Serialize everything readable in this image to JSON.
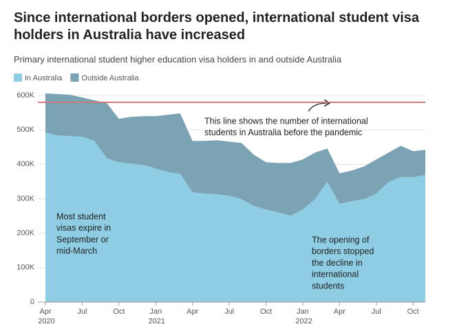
{
  "chart_data": {
    "type": "stacked-area",
    "title": "Since international borders opened, international student visa holders in Australia have increased",
    "subtitle": "Primary international student higher education visa holders in and outside Australia",
    "x": [
      "2020-04",
      "2020-05",
      "2020-06",
      "2020-07",
      "2020-08",
      "2020-09",
      "2020-10",
      "2020-11",
      "2020-12",
      "2021-01",
      "2021-02",
      "2021-03",
      "2021-04",
      "2021-05",
      "2021-06",
      "2021-07",
      "2021-08",
      "2021-09",
      "2021-10",
      "2021-11",
      "2021-12",
      "2022-01",
      "2022-02",
      "2022-03",
      "2022-04",
      "2022-05",
      "2022-06",
      "2022-07",
      "2022-08",
      "2022-09",
      "2022-10",
      "2022-11"
    ],
    "series": [
      {
        "name": "In Australia",
        "color": "#8ecde3",
        "values": [
          492,
          484,
          482,
          480,
          468,
          418,
          406,
          402,
          398,
          388,
          378,
          372,
          319,
          315,
          313,
          309,
          299,
          279,
          269,
          261,
          251,
          269,
          299,
          349,
          285,
          293,
          299,
          315,
          349,
          363,
          363,
          369
        ]
      },
      {
        "name": "Outside Australia",
        "color": "#7ba3b4",
        "values": [
          114,
          120,
          120,
          114,
          118,
          160,
          126,
          136,
          142,
          152,
          166,
          176,
          149,
          153,
          157,
          157,
          163,
          149,
          137,
          143,
          153,
          145,
          135,
          97,
          89,
          89,
          95,
          99,
          85,
          91,
          75,
          73
        ]
      }
    ],
    "xlim": [
      "2020-04",
      "2022-11"
    ],
    "xticks": [
      {
        "value": "2020-04",
        "label": "Apr 2020"
      },
      {
        "value": "2020-07",
        "label": "Jul"
      },
      {
        "value": "2020-10",
        "label": "Oct"
      },
      {
        "value": "2021-01",
        "label": "Jan 2021"
      },
      {
        "value": "2021-04",
        "label": "Apr"
      },
      {
        "value": "2021-07",
        "label": "Jul"
      },
      {
        "value": "2021-10",
        "label": "Oct"
      },
      {
        "value": "2022-01",
        "label": "Jan 2022"
      },
      {
        "value": "2022-04",
        "label": "Apr"
      },
      {
        "value": "2022-07",
        "label": "Jul"
      },
      {
        "value": "2022-10",
        "label": "Oct"
      }
    ],
    "ylim": [
      0,
      600
    ],
    "yticks": [
      0,
      {
        "value": 100,
        "label": "100K"
      },
      {
        "value": 200,
        "label": "200K"
      },
      {
        "value": 300,
        "label": "300K"
      },
      {
        "value": 400,
        "label": "400K"
      },
      {
        "value": 500,
        "label": "500K"
      },
      {
        "value": 600,
        "label": "600K"
      }
    ],
    "grid": true,
    "reference_line": {
      "value": 580,
      "color": "#c97b7b"
    },
    "annotations": [
      {
        "lines": [
          "This line shows the number of international",
          "students in Australia before the pandemic"
        ]
      },
      {
        "lines": [
          "Most student",
          "visas expire in",
          "September or",
          "mid-March"
        ]
      },
      {
        "lines": [
          "The opening of",
          "borders stopped",
          "the decline in",
          "international",
          "students"
        ]
      }
    ]
  }
}
